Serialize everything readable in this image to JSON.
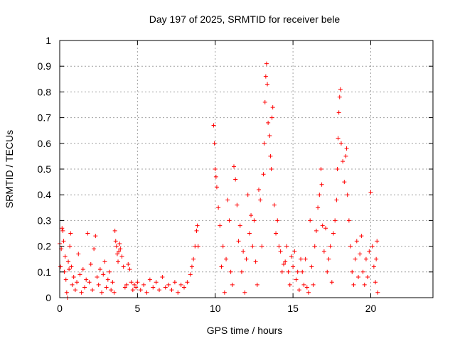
{
  "colors": {
    "series": "#ff0000",
    "axis": "#000000",
    "grid": "#a0a0a0",
    "background": "#ffffff"
  },
  "chart_data": {
    "type": "scatter",
    "title": "Day 197 of 2025, SRMTID for receiver bele",
    "xlabel": "GPS time / hours",
    "ylabel": "SRMTID / TECUs",
    "xlim": [
      0,
      24
    ],
    "ylim": [
      0,
      1
    ],
    "xticks": [
      0,
      5,
      10,
      15,
      20
    ],
    "xtick_labels": [
      "0",
      "5",
      "10",
      "15",
      "20"
    ],
    "yticks": [
      0,
      0.1,
      0.2,
      0.3,
      0.4,
      0.5,
      0.6,
      0.7,
      0.8,
      0.9,
      1
    ],
    "ytick_labels": [
      "0",
      "0.1",
      "0.2",
      "0.3",
      "0.4",
      "0.5",
      "0.6",
      "0.7",
      "0.8",
      "0.9",
      "1"
    ],
    "grid": true,
    "marker": "plus",
    "series": [
      {
        "name": "SRMTID",
        "points": [
          [
            0.0,
            0.21
          ],
          [
            0.05,
            0.12
          ],
          [
            0.1,
            0.19
          ],
          [
            0.15,
            0.27
          ],
          [
            0.2,
            0.26
          ],
          [
            0.25,
            0.22
          ],
          [
            0.3,
            0.1
          ],
          [
            0.35,
            0.16
          ],
          [
            0.4,
            0.07
          ],
          [
            0.45,
            0.02
          ],
          [
            0.5,
            0.0
          ],
          [
            0.55,
            0.14
          ],
          [
            0.6,
            0.11
          ],
          [
            0.65,
            0.2
          ],
          [
            0.7,
            0.25
          ],
          [
            0.75,
            0.12
          ],
          [
            0.8,
            0.05
          ],
          [
            0.9,
            0.08
          ],
          [
            1.0,
            0.03
          ],
          [
            1.1,
            0.06
          ],
          [
            1.2,
            0.17
          ],
          [
            1.3,
            0.09
          ],
          [
            1.4,
            0.02
          ],
          [
            1.5,
            0.11
          ],
          [
            1.6,
            0.04
          ],
          [
            1.7,
            0.07
          ],
          [
            1.8,
            0.25
          ],
          [
            1.9,
            0.06
          ],
          [
            2.0,
            0.13
          ],
          [
            2.1,
            0.03
          ],
          [
            2.2,
            0.19
          ],
          [
            2.3,
            0.24
          ],
          [
            2.4,
            0.08
          ],
          [
            2.5,
            0.05
          ],
          [
            2.6,
            0.11
          ],
          [
            2.7,
            0.02
          ],
          [
            2.8,
            0.09
          ],
          [
            2.9,
            0.14
          ],
          [
            3.0,
            0.04
          ],
          [
            3.1,
            0.07
          ],
          [
            3.2,
            0.1
          ],
          [
            3.3,
            0.03
          ],
          [
            3.4,
            0.06
          ],
          [
            3.5,
            0.02
          ],
          [
            3.55,
            0.26
          ],
          [
            3.6,
            0.22
          ],
          [
            3.65,
            0.2
          ],
          [
            3.7,
            0.17
          ],
          [
            3.75,
            0.14
          ],
          [
            3.8,
            0.18
          ],
          [
            3.85,
            0.21
          ],
          [
            3.9,
            0.19
          ],
          [
            4.0,
            0.16
          ],
          [
            4.1,
            0.12
          ],
          [
            4.2,
            0.04
          ],
          [
            4.3,
            0.05
          ],
          [
            4.4,
            0.13
          ],
          [
            4.5,
            0.11
          ],
          [
            4.6,
            0.06
          ],
          [
            4.7,
            0.03
          ],
          [
            4.8,
            0.05
          ],
          [
            4.9,
            0.04
          ],
          [
            5.0,
            0.06
          ],
          [
            5.2,
            0.03
          ],
          [
            5.4,
            0.05
          ],
          [
            5.6,
            0.02
          ],
          [
            5.8,
            0.07
          ],
          [
            6.0,
            0.04
          ],
          [
            6.2,
            0.06
          ],
          [
            6.4,
            0.03
          ],
          [
            6.6,
            0.08
          ],
          [
            6.8,
            0.04
          ],
          [
            7.0,
            0.05
          ],
          [
            7.2,
            0.03
          ],
          [
            7.4,
            0.06
          ],
          [
            7.6,
            0.02
          ],
          [
            7.8,
            0.05
          ],
          [
            8.0,
            0.04
          ],
          [
            8.2,
            0.06
          ],
          [
            8.4,
            0.09
          ],
          [
            8.5,
            0.12
          ],
          [
            8.6,
            0.15
          ],
          [
            8.7,
            0.2
          ],
          [
            8.8,
            0.26
          ],
          [
            8.85,
            0.28
          ],
          [
            8.9,
            0.2
          ],
          [
            9.9,
            0.67
          ],
          [
            9.95,
            0.6
          ],
          [
            10.0,
            0.5
          ],
          [
            10.05,
            0.47
          ],
          [
            10.1,
            0.43
          ],
          [
            10.2,
            0.35
          ],
          [
            10.3,
            0.28
          ],
          [
            10.4,
            0.12
          ],
          [
            10.5,
            0.2
          ],
          [
            10.6,
            0.02
          ],
          [
            10.7,
            0.15
          ],
          [
            10.8,
            0.38
          ],
          [
            10.9,
            0.3
          ],
          [
            11.0,
            0.1
          ],
          [
            11.1,
            0.05
          ],
          [
            11.2,
            0.51
          ],
          [
            11.3,
            0.46
          ],
          [
            11.4,
            0.36
          ],
          [
            11.5,
            0.22
          ],
          [
            11.6,
            0.28
          ],
          [
            11.7,
            0.1
          ],
          [
            11.8,
            0.18
          ],
          [
            11.9,
            0.02
          ],
          [
            12.0,
            0.15
          ],
          [
            12.1,
            0.4
          ],
          [
            12.2,
            0.25
          ],
          [
            12.3,
            0.32
          ],
          [
            12.4,
            0.2
          ],
          [
            12.5,
            0.3
          ],
          [
            12.6,
            0.14
          ],
          [
            12.7,
            0.05
          ],
          [
            12.8,
            0.42
          ],
          [
            12.9,
            0.38
          ],
          [
            13.0,
            0.2
          ],
          [
            13.1,
            0.48
          ],
          [
            13.15,
            0.6
          ],
          [
            13.2,
            0.76
          ],
          [
            13.25,
            0.86
          ],
          [
            13.3,
            0.91
          ],
          [
            13.35,
            0.83
          ],
          [
            13.4,
            0.68
          ],
          [
            13.5,
            0.63
          ],
          [
            13.55,
            0.55
          ],
          [
            13.6,
            0.5
          ],
          [
            13.65,
            0.7
          ],
          [
            13.7,
            0.74
          ],
          [
            13.8,
            0.36
          ],
          [
            13.9,
            0.25
          ],
          [
            14.0,
            0.3
          ],
          [
            14.1,
            0.2
          ],
          [
            14.2,
            0.18
          ],
          [
            14.3,
            0.1
          ],
          [
            14.4,
            0.13
          ],
          [
            14.5,
            0.14
          ],
          [
            14.6,
            0.2
          ],
          [
            14.7,
            0.1
          ],
          [
            14.8,
            0.05
          ],
          [
            14.9,
            0.16
          ],
          [
            15.0,
            0.12
          ],
          [
            15.1,
            0.18
          ],
          [
            15.2,
            0.07
          ],
          [
            15.3,
            0.1
          ],
          [
            15.4,
            0.03
          ],
          [
            15.5,
            0.15
          ],
          [
            15.6,
            0.1
          ],
          [
            15.7,
            0.05
          ],
          [
            15.8,
            0.15
          ],
          [
            15.9,
            0.04
          ],
          [
            16.0,
            0.02
          ],
          [
            16.1,
            0.3
          ],
          [
            16.2,
            0.12
          ],
          [
            16.3,
            0.05
          ],
          [
            16.4,
            0.2
          ],
          [
            16.5,
            0.26
          ],
          [
            16.6,
            0.35
          ],
          [
            16.7,
            0.4
          ],
          [
            16.8,
            0.5
          ],
          [
            16.85,
            0.44
          ],
          [
            16.9,
            0.28
          ],
          [
            17.0,
            0.18
          ],
          [
            17.1,
            0.27
          ],
          [
            17.2,
            0.1
          ],
          [
            17.3,
            0.15
          ],
          [
            17.4,
            0.2
          ],
          [
            17.5,
            0.06
          ],
          [
            17.6,
            0.25
          ],
          [
            17.7,
            0.3
          ],
          [
            17.8,
            0.38
          ],
          [
            17.85,
            0.5
          ],
          [
            17.9,
            0.62
          ],
          [
            17.95,
            0.72
          ],
          [
            18.0,
            0.78
          ],
          [
            18.05,
            0.81
          ],
          [
            18.1,
            0.6
          ],
          [
            18.2,
            0.53
          ],
          [
            18.3,
            0.45
          ],
          [
            18.4,
            0.55
          ],
          [
            18.45,
            0.58
          ],
          [
            18.5,
            0.4
          ],
          [
            18.6,
            0.3
          ],
          [
            18.7,
            0.2
          ],
          [
            18.8,
            0.1
          ],
          [
            18.9,
            0.05
          ],
          [
            19.0,
            0.15
          ],
          [
            19.1,
            0.22
          ],
          [
            19.2,
            0.08
          ],
          [
            19.3,
            0.17
          ],
          [
            19.4,
            0.24
          ],
          [
            19.5,
            0.1
          ],
          [
            19.6,
            0.05
          ],
          [
            19.7,
            0.15
          ],
          [
            19.8,
            0.08
          ],
          [
            19.9,
            0.18
          ],
          [
            20.0,
            0.41
          ],
          [
            20.1,
            0.2
          ],
          [
            20.2,
            0.12
          ],
          [
            20.3,
            0.06
          ],
          [
            20.35,
            0.15
          ],
          [
            20.4,
            0.22
          ],
          [
            20.45,
            0.02
          ]
        ]
      }
    ]
  }
}
